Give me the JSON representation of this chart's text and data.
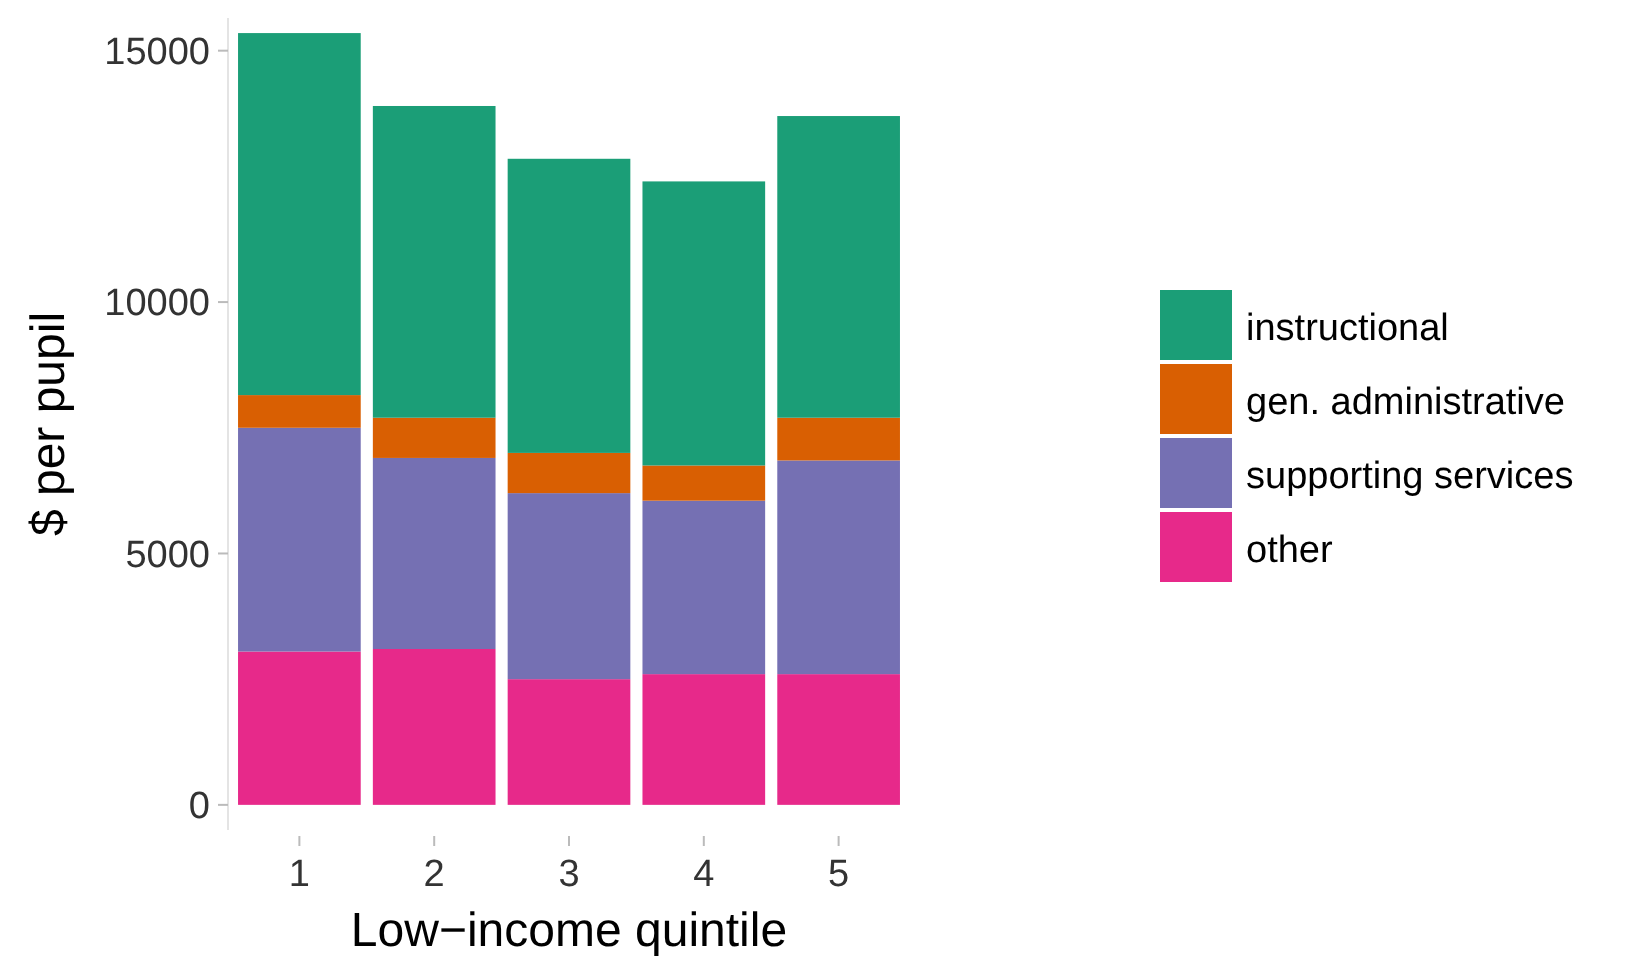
{
  "chart_data": {
    "type": "bar",
    "xlabel": "Low−income quintile",
    "ylabel": "$ per pupil",
    "categories": [
      "1",
      "2",
      "3",
      "4",
      "5"
    ],
    "stacked": true,
    "legend": "right",
    "grid": false,
    "ylim": [
      -500,
      15650
    ],
    "yticks": [
      0,
      5000,
      10000,
      15000
    ],
    "series": [
      {
        "name": "other",
        "color": "#e7298a",
        "values": [
          3050,
          3100,
          2500,
          2600,
          2600
        ]
      },
      {
        "name": "supporting services",
        "color": "#7570b3",
        "values": [
          4450,
          3800,
          3700,
          3450,
          4250
        ]
      },
      {
        "name": "gen. administrative",
        "color": "#d95f02",
        "values": [
          650,
          800,
          800,
          700,
          850
        ]
      },
      {
        "name": "instructional",
        "color": "#1b9e77",
        "values": [
          7200,
          6200,
          5850,
          5650,
          6000
        ]
      }
    ]
  }
}
